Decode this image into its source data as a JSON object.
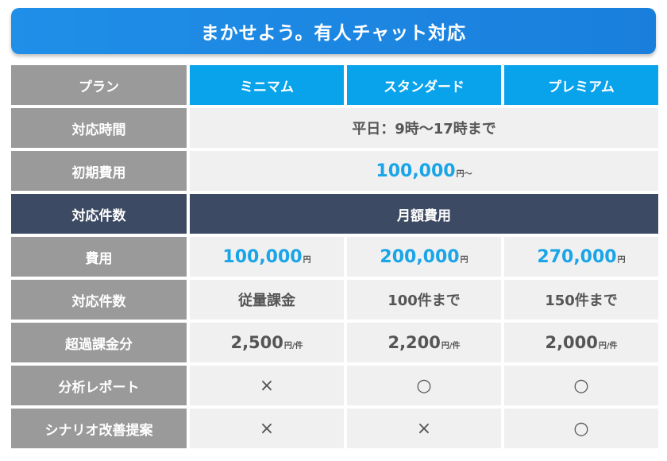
{
  "banner": {
    "title": "まかせよう。有人チャット対応"
  },
  "header": {
    "row_label": "プラン",
    "plans": [
      "ミニマム",
      "スタンダード",
      "プレミアム"
    ]
  },
  "rows": {
    "hours": {
      "label": "対応時間",
      "value": "平日：9時〜17時まで"
    },
    "initial": {
      "label": "初期費用",
      "amount": "100,000",
      "unit": "円〜"
    },
    "section": {
      "label": "対応件数",
      "value": "月額費用"
    },
    "fee": {
      "label": "費用",
      "amounts": [
        "100,000",
        "200,000",
        "270,000"
      ],
      "unit": "円"
    },
    "count": {
      "label": "対応件数",
      "values": [
        "従量課金",
        "100件まで",
        "150件まで"
      ]
    },
    "overage": {
      "label": "超過課金分",
      "amounts": [
        "2,500",
        "2,200",
        "2,000"
      ],
      "unit": "円/件"
    },
    "report": {
      "label": "分析レポート",
      "marks": [
        "×",
        "○",
        "○"
      ]
    },
    "scenario": {
      "label": "シナリオ改善提案",
      "marks": [
        "×",
        "×",
        "○"
      ]
    }
  }
}
